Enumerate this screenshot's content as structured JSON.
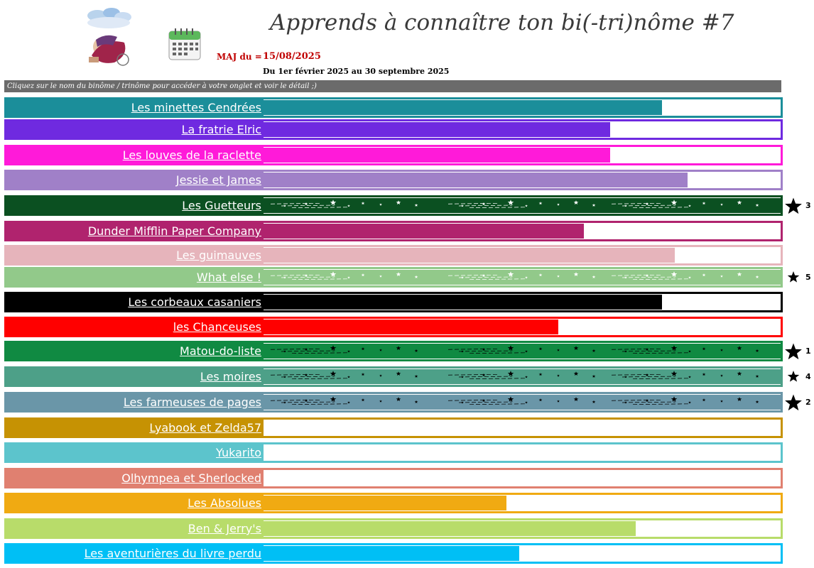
{
  "header": {
    "title": "Apprends à connaître ton bi(-tri)nôme #7",
    "maj_label": "MAJ du =",
    "maj_date": "15/08/2025",
    "period": "Du 1er février 2025 au 30 septembre 2025",
    "banner": "Cliquez sur le nom du binôme / trinôme pour accéder à votre onglet et voir le détail ;)",
    "logo_icon": "reading-challenge-logo",
    "calendar_icon": "calendar-icon"
  },
  "teams": [
    {
      "name": "Les minettes Cendrées",
      "color": "#1b8e9a",
      "progress": 0.77,
      "style": "solid"
    },
    {
      "name": "La fratrie Elric",
      "color": "#6f2ae0",
      "progress": 0.67,
      "style": "solid"
    },
    {
      "name": "Les louves de la raclette",
      "color": "#ff1ad9",
      "progress": 0.67,
      "style": "solid"
    },
    {
      "name": "Jessie et James",
      "color": "#a080c8",
      "progress": 0.82,
      "style": "solid"
    },
    {
      "name": "Les Guetteurs",
      "color": "#0b5021",
      "progress": 1.0,
      "style": "stars-white",
      "rank": "3",
      "star_size": "big"
    },
    {
      "name": "Dunder Mifflin Paper Company",
      "color": "#b0236e",
      "progress": 0.62,
      "style": "solid"
    },
    {
      "name": "Les guimauves",
      "color": "#e6b4bb",
      "progress": 0.795,
      "style": "solid"
    },
    {
      "name": "What else !",
      "color": "#92c98a",
      "progress": 1.0,
      "style": "stars-white",
      "rank": "5",
      "star_size": "small"
    },
    {
      "name": "Les corbeaux casaniers",
      "color": "#000000",
      "progress": 0.77,
      "style": "solid"
    },
    {
      "name": "les Chanceuses",
      "color": "#ff0000",
      "progress": 0.57,
      "style": "solid"
    },
    {
      "name": "Matou-do-liste",
      "color": "#108a42",
      "progress": 1.0,
      "style": "stars-black",
      "rank": "1",
      "star_size": "big"
    },
    {
      "name": "Les moires",
      "color": "#4da088",
      "progress": 1.0,
      "style": "stars-black",
      "rank": "4",
      "star_size": "small"
    },
    {
      "name": "Les farmeuses de pages",
      "color": "#6a96a8",
      "progress": 1.0,
      "style": "stars-black",
      "rank": "2",
      "star_size": "big"
    },
    {
      "name": "Lyabook et Zelda57",
      "color": "#c69203",
      "progress": 0.0,
      "style": "solid"
    },
    {
      "name": "Yukarito",
      "color": "#5cc4cc",
      "progress": 0.0,
      "style": "solid"
    },
    {
      "name": "Olhympea et Sherlocked",
      "color": "#e08070",
      "progress": 0.0,
      "style": "solid"
    },
    {
      "name": "Les Absolues",
      "color": "#f0aa12",
      "progress": 0.47,
      "style": "solid"
    },
    {
      "name": "Ben & Jerry's",
      "color": "#b8dc6a",
      "progress": 0.72,
      "style": "solid"
    },
    {
      "name": "Les aventurières du livre perdu",
      "color": "#00bff5",
      "progress": 0.495,
      "style": "solid"
    }
  ]
}
